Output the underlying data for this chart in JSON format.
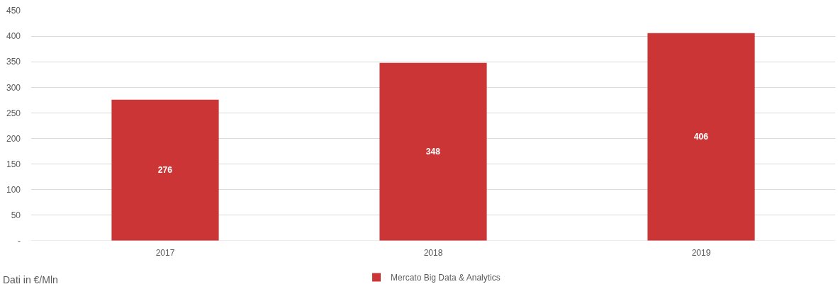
{
  "chart_data": {
    "type": "bar",
    "categories": [
      "2017",
      "2018",
      "2019"
    ],
    "series": [
      {
        "name": "Mercato Big Data & Analytics",
        "color": "#cc3535",
        "values": [
          276,
          348,
          406
        ]
      }
    ],
    "ylim": [
      0,
      450
    ],
    "yticks": [
      {
        "value": 0,
        "label": "-"
      },
      50,
      100,
      150,
      200,
      250,
      300,
      350,
      400,
      450
    ],
    "grid": "y",
    "legend": "bottom",
    "data_labels": true,
    "annotations": [
      "Dati in €/Mln"
    ]
  }
}
